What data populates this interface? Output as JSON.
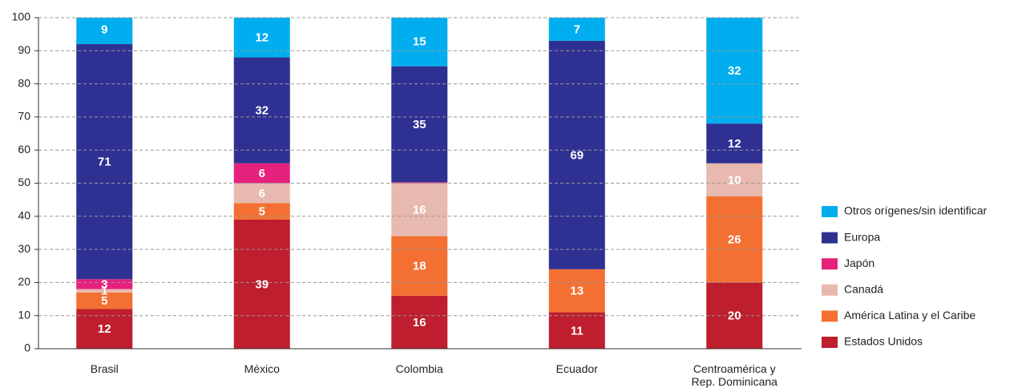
{
  "chart_data": {
    "type": "stacked-bar",
    "categories": [
      "Brasil",
      "México",
      "Colombia",
      "Ecuador",
      "Centroamérica y\nRep. Dominicana"
    ],
    "series": [
      {
        "name": "Estados Unidos",
        "color": "#be1e2d",
        "values": [
          12,
          39,
          16,
          11,
          20
        ]
      },
      {
        "name": "América Latina y el Caribe",
        "color": "#f37032",
        "values": [
          5,
          5,
          18,
          13,
          26
        ]
      },
      {
        "name": "Canadá",
        "color": "#e8b9ae",
        "values": [
          1,
          6,
          16,
          0,
          10
        ]
      },
      {
        "name": "Japón",
        "color": "#e6207d",
        "values": [
          3,
          6,
          0.3,
          0,
          0
        ]
      },
      {
        "name": "Europa",
        "color": "#2e3192",
        "values": [
          71,
          32,
          35,
          69,
          12
        ]
      },
      {
        "name": "Otros orígenes/sin identificar",
        "color": "#00aeef",
        "values": [
          9,
          12,
          15,
          7,
          32
        ]
      }
    ],
    "ylim": [
      0,
      100
    ],
    "yticks": [
      0,
      10,
      20,
      30,
      40,
      50,
      60,
      70,
      80,
      90,
      100
    ],
    "grid": true,
    "legend": "right"
  }
}
